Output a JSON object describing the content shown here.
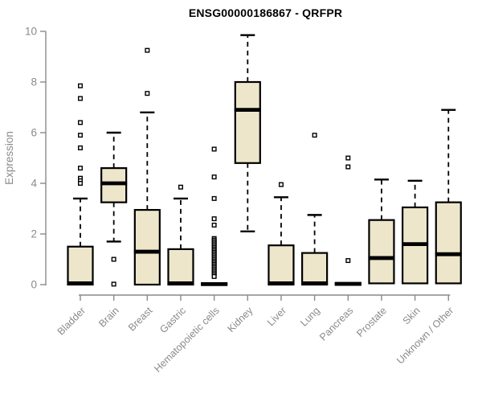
{
  "chart_data": {
    "type": "boxplot",
    "title": "ENSG00000186867 - QRFPR",
    "ylabel": "Expression",
    "xlabel": "",
    "ylim": [
      0,
      10
    ],
    "yticks": [
      0,
      2,
      4,
      6,
      8,
      10
    ],
    "grid": false,
    "legend": "none",
    "categories": [
      "Bladder",
      "Brain",
      "Breast",
      "Gastric",
      "Hematopoietic cells",
      "Kidney",
      "Liver",
      "Lung",
      "Pancreas",
      "Prostate",
      "Skin",
      "Unknown / Other"
    ],
    "series": [
      {
        "name": "Bladder",
        "low": 0,
        "q1": 0,
        "median": 0.05,
        "q3": 1.5,
        "high": 3.4,
        "outliers": [
          7.85,
          7.35,
          6.4,
          5.9,
          5.4,
          4.6,
          4.2,
          4.1,
          4.0
        ]
      },
      {
        "name": "Brain",
        "low": 1.7,
        "q1": 3.25,
        "median": 4.0,
        "q3": 4.6,
        "high": 6.0,
        "outliers": [
          1.0,
          0.02
        ]
      },
      {
        "name": "Breast",
        "low": 0,
        "q1": 0,
        "median": 1.3,
        "q3": 2.95,
        "high": 6.8,
        "outliers": [
          9.25,
          7.55
        ]
      },
      {
        "name": "Gastric",
        "low": 0,
        "q1": 0,
        "median": 0.05,
        "q3": 1.4,
        "high": 3.4,
        "outliers": [
          3.85
        ]
      },
      {
        "name": "Hematopoietic cells",
        "low": 0,
        "q1": 0,
        "median": 0.02,
        "q3": 0.05,
        "high": 0.05,
        "outliers": [
          5.35,
          4.25,
          3.4,
          2.6,
          2.35,
          1.82,
          1.76,
          1.7,
          1.64,
          1.58,
          1.52,
          1.46,
          1.4,
          1.34,
          1.28,
          1.22,
          1.16,
          1.1,
          1.04,
          0.98,
          0.92,
          0.86,
          0.8,
          0.74,
          0.68,
          0.62,
          0.56,
          0.5,
          0.44,
          0.38,
          0.32
        ]
      },
      {
        "name": "Kidney",
        "low": 2.1,
        "q1": 4.8,
        "median": 6.9,
        "q3": 8.0,
        "high": 9.85,
        "outliers": []
      },
      {
        "name": "Liver",
        "low": 0,
        "q1": 0,
        "median": 0.05,
        "q3": 1.55,
        "high": 3.45,
        "outliers": [
          3.95
        ]
      },
      {
        "name": "Lung",
        "low": 0,
        "q1": 0,
        "median": 0.05,
        "q3": 1.25,
        "high": 2.75,
        "outliers": [
          5.9
        ]
      },
      {
        "name": "Pancreas",
        "low": 0,
        "q1": 0,
        "median": 0.03,
        "q3": 0.06,
        "high": 0.06,
        "outliers": [
          5.0,
          4.65,
          0.95
        ]
      },
      {
        "name": "Prostate",
        "low": 0.05,
        "q1": 0.05,
        "median": 1.05,
        "q3": 2.55,
        "high": 4.15,
        "outliers": []
      },
      {
        "name": "Skin",
        "low": 0.05,
        "q1": 0.05,
        "median": 1.6,
        "q3": 3.05,
        "high": 4.1,
        "outliers": []
      },
      {
        "name": "Unknown / Other",
        "low": 0.05,
        "q1": 0.05,
        "median": 1.2,
        "q3": 3.25,
        "high": 6.9,
        "outliers": []
      }
    ],
    "colors": {
      "box_fill": "#EDE6CB",
      "box_stroke": "#000000",
      "median": "#000000",
      "whisker": "#000000",
      "outlier": "#000000",
      "axis": "#8A8A8A",
      "tick_label": "#8A8A8A",
      "title": "#000000",
      "background": "#FFFFFF"
    }
  }
}
